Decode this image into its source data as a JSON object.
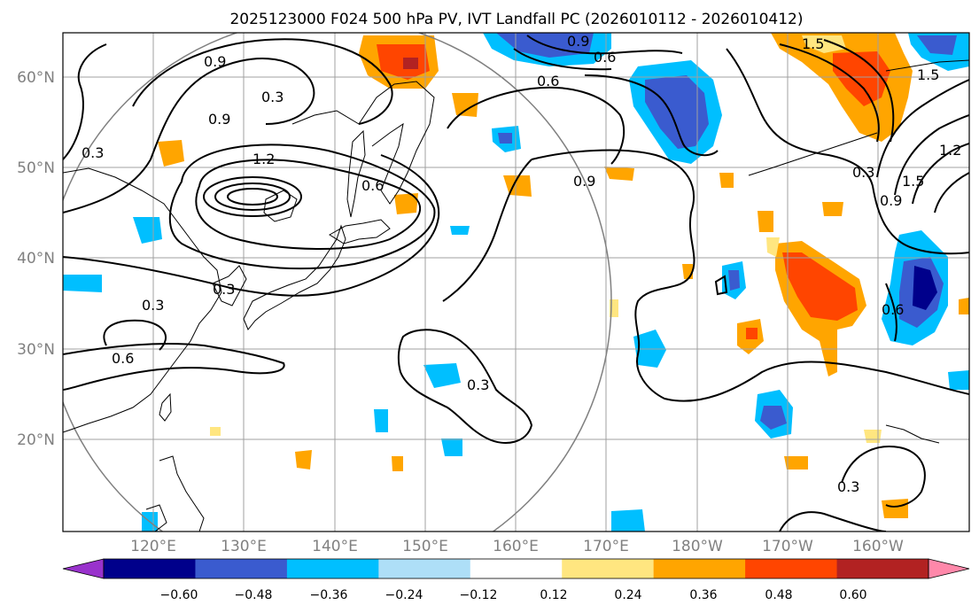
{
  "title": "2025123000 F024 500 hPa PV, IVT Landfall PC (2026010112 - 2026010412)",
  "colors": {
    "levels": [
      "#9932cc",
      "#00008b",
      "#3a5bcf",
      "#00bfff",
      "#aedff7",
      "#ffffff",
      "#ffe680",
      "#ffa500",
      "#ff4500",
      "#b22222",
      "#ff88aa"
    ],
    "grid": "#a0a0a0",
    "circle": "#808080"
  },
  "map": {
    "lon_ticks": [
      "120°E",
      "130°E",
      "140°E",
      "150°E",
      "160°E",
      "170°E",
      "180°W",
      "170°W",
      "160°W"
    ],
    "lat_ticks": [
      "60°N",
      "50°N",
      "40°N",
      "30°N",
      "20°N"
    ]
  },
  "contour_labels": [
    "0.9",
    "0.6",
    "0.6",
    "0.9",
    "0.3",
    "0.9",
    "0.3",
    "1.2",
    "0.6",
    "0.3",
    "0.3",
    "0.6",
    "0.3",
    "0.9",
    "0.3",
    "0.9",
    "1.5",
    "1.2",
    "1.5",
    "0.6",
    "0.3",
    "1.5"
  ],
  "colorbar": {
    "ticks": [
      "−0.60",
      "−0.48",
      "−0.36",
      "−0.24",
      "−0.12",
      "0.12",
      "0.24",
      "0.36",
      "0.48",
      "0.60"
    ]
  }
}
